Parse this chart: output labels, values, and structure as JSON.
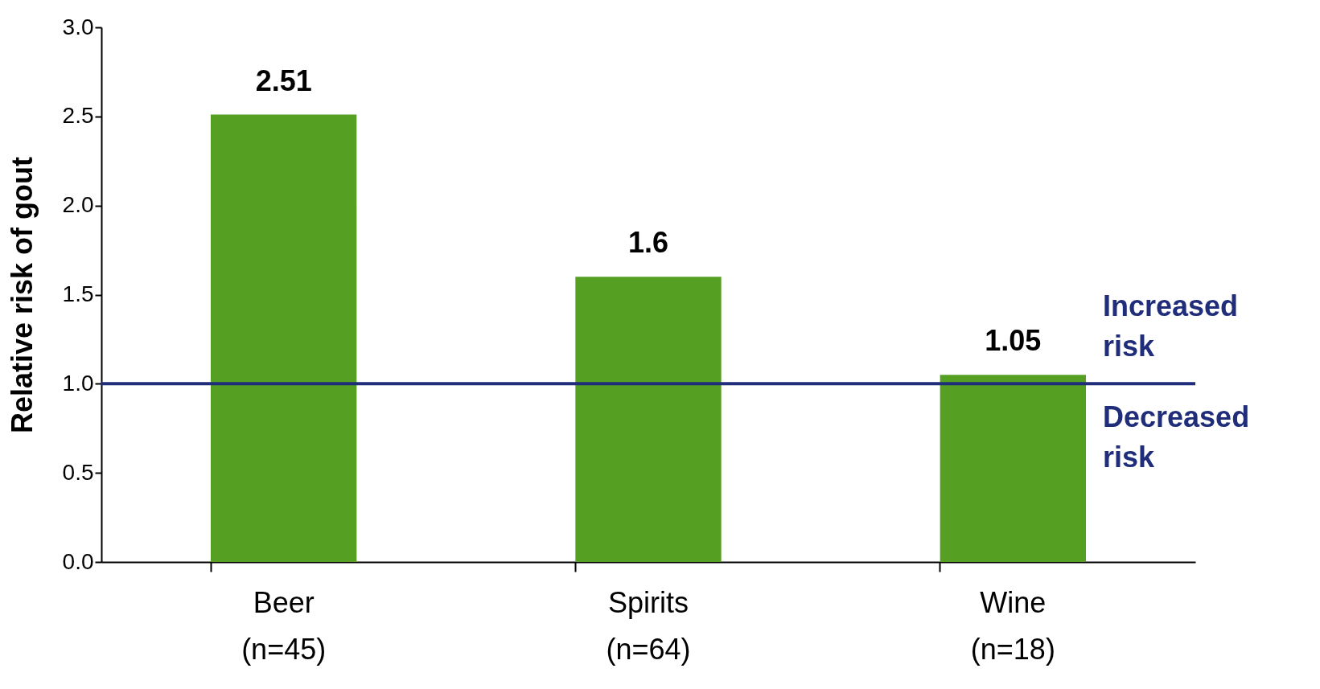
{
  "chart_data": {
    "type": "bar",
    "ylabel": "Relative risk of gout",
    "categories": [
      "Beer\n(n=45)",
      "Spirits\n(n=64)",
      "Wine\n(n=18)"
    ],
    "values": [
      2.51,
      1.6,
      1.05
    ],
    "color": "#55a023",
    "data_labels": true,
    "ylim": [
      0,
      3
    ],
    "yticks": [
      {
        "value": 0,
        "label": "0.0"
      },
      {
        "value": 0.5,
        "label": "0.5"
      },
      {
        "value": 1,
        "label": "1.0"
      },
      {
        "value": 1.5,
        "label": "1.5"
      },
      {
        "value": 2,
        "label": "2.0"
      },
      {
        "value": 2.5,
        "label": "2.5"
      },
      {
        "value": 3,
        "label": "3.0"
      }
    ],
    "grid": false,
    "ref_lines": [
      {
        "axis": "y",
        "value": 1,
        "color": "#1f2d7a"
      }
    ],
    "annotations": [
      {
        "text": "Increased risk",
        "y": 1
      },
      {
        "text": "Decreased risk",
        "y": 1
      }
    ]
  }
}
